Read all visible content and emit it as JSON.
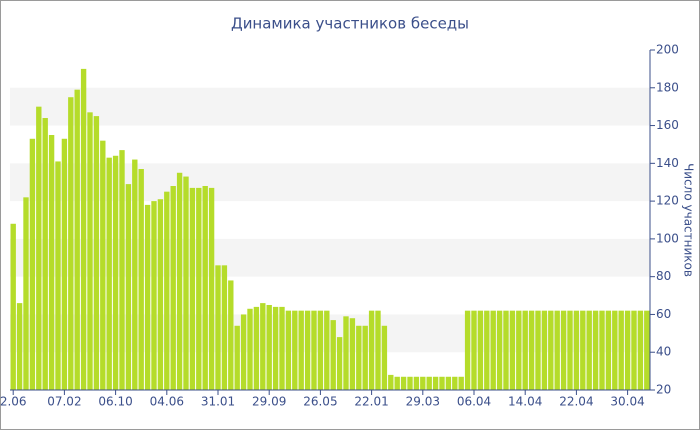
{
  "chart_data": {
    "type": "bar",
    "title": "Динамика участников беседы",
    "y_axis_label": "Число участников",
    "y_axis_side": "right",
    "color": "#b5dc2a",
    "bands": true,
    "ylim": [
      20,
      200
    ],
    "yticks": [
      20,
      40,
      60,
      80,
      100,
      120,
      140,
      160,
      180,
      200
    ],
    "categories": [
      "2.06",
      null,
      null,
      null,
      null,
      null,
      null,
      null,
      "07.02",
      null,
      null,
      null,
      null,
      null,
      null,
      null,
      "06.10",
      null,
      null,
      null,
      null,
      null,
      null,
      null,
      "04.06",
      null,
      null,
      null,
      null,
      null,
      null,
      null,
      "31.01",
      null,
      null,
      null,
      null,
      null,
      null,
      null,
      "29.09",
      null,
      null,
      null,
      null,
      null,
      null,
      null,
      "26.05",
      null,
      null,
      null,
      null,
      null,
      null,
      null,
      "22.01",
      null,
      null,
      null,
      null,
      null,
      null,
      null,
      "29.03",
      null,
      null,
      null,
      null,
      null,
      null,
      null,
      "06.04",
      null,
      null,
      null,
      null,
      null,
      null,
      null,
      "14.04",
      null,
      null,
      null,
      null,
      null,
      null,
      null,
      "22.04",
      null,
      null,
      null,
      null,
      null,
      null,
      null,
      "30.04",
      null,
      null,
      null
    ],
    "values": [
      108,
      66,
      122,
      153,
      170,
      164,
      155,
      141,
      153,
      175,
      179,
      190,
      167,
      165,
      152,
      143,
      144,
      147,
      129,
      142,
      137,
      118,
      120,
      121,
      125,
      128,
      135,
      133,
      127,
      127,
      128,
      127,
      86,
      86,
      78,
      54,
      60,
      63,
      64,
      66,
      65,
      64,
      64,
      62,
      62,
      62,
      62,
      62,
      62,
      62,
      57,
      48,
      59,
      58,
      54,
      54,
      62,
      62,
      54,
      28,
      27,
      27,
      27,
      27,
      27,
      27,
      27,
      27,
      27,
      27,
      27,
      62,
      62,
      62,
      62,
      62,
      62,
      62,
      62,
      62,
      62,
      62,
      62,
      62,
      62,
      62,
      62,
      62,
      62,
      62,
      62,
      62,
      62,
      62,
      62,
      62,
      62,
      62,
      62,
      62
    ]
  }
}
